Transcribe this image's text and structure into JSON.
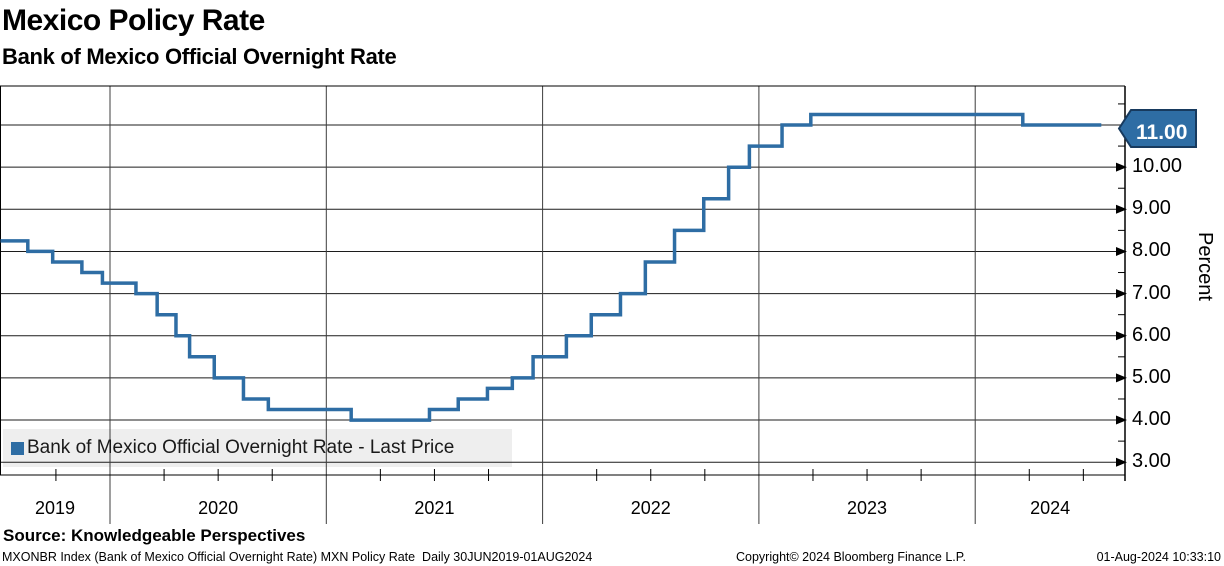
{
  "header": {
    "title": "Mexico Policy Rate",
    "subtitle": "Bank of Mexico Official Overnight Rate"
  },
  "legend": {
    "label": "Bank of Mexico Official Overnight Rate - Last Price",
    "marker_color": "#2e6da4"
  },
  "source_line": "Source: Knowledgeable Perspectives",
  "footer": {
    "left": "MXONBR Index (Bank of Mexico Official Overnight Rate) MXN Policy Rate  Daily 30JUN2019-01AUG2024",
    "copyright": "Copyright© 2024 Bloomberg Finance L.P.",
    "timestamp": "01-Aug-2024 10:33:10"
  },
  "chart_data": {
    "type": "step-line",
    "title": "Mexico Policy Rate",
    "subtitle": "Bank of Mexico Official Overnight Rate",
    "xlabel": "",
    "ylabel": "Percent",
    "x_range": {
      "start": "30JUN2019",
      "end": "01AUG2024"
    },
    "x_year_labels": [
      "2019",
      "2020",
      "2021",
      "2022",
      "2023",
      "2024"
    ],
    "year_boundaries": [
      2020,
      2021,
      2022,
      2023,
      2024
    ],
    "y_ticks": [
      11,
      10,
      9,
      8,
      7,
      6,
      5,
      4,
      3
    ],
    "y_tick_labels": [
      "11.00",
      "10.00",
      "9.00",
      "8.00",
      "7.00",
      "6.00",
      "5.00",
      "4.00",
      "3.00"
    ],
    "y_minor_ticks": [
      11.5,
      10.5,
      9.5,
      8.5,
      7.5,
      6.5,
      5.5,
      4.5,
      3.5
    ],
    "ylim_visible": [
      2.7,
      11.9
    ],
    "grid": true,
    "legend_position": "bottom-left",
    "line_color": "#2e6da4",
    "last_price": {
      "label": "11.00",
      "value": 11.0,
      "bg": "#2e6da4",
      "border": "#173a5e",
      "text_color": "#ffffff"
    },
    "series": [
      {
        "name": "Bank of Mexico Official Overnight Rate - Last Price",
        "color": "#2e6da4",
        "steps": [
          {
            "date": "30JUN2019",
            "t": 2019.49,
            "rate": 8.25
          },
          {
            "date": "15AUG2019",
            "t": 2019.62,
            "rate": 8.0
          },
          {
            "date": "26SEP2019",
            "t": 2019.735,
            "rate": 7.75
          },
          {
            "date": "14NOV2019",
            "t": 2019.87,
            "rate": 7.5
          },
          {
            "date": "19DEC2019",
            "t": 2019.965,
            "rate": 7.25
          },
          {
            "date": "13FEB2020",
            "t": 2020.12,
            "rate": 7.0
          },
          {
            "date": "20MAR2020",
            "t": 2020.218,
            "rate": 6.5
          },
          {
            "date": "21APR2020",
            "t": 2020.305,
            "rate": 6.0
          },
          {
            "date": "14MAY2020",
            "t": 2020.368,
            "rate": 5.5
          },
          {
            "date": "25JUN2020",
            "t": 2020.482,
            "rate": 5.0
          },
          {
            "date": "13AUG2020",
            "t": 2020.617,
            "rate": 4.5
          },
          {
            "date": "24SEP2020",
            "t": 2020.732,
            "rate": 4.25
          },
          {
            "date": "11FEB2021",
            "t": 2021.115,
            "rate": 4.0
          },
          {
            "date": "24JUN2021",
            "t": 2021.477,
            "rate": 4.25
          },
          {
            "date": "12AUG2021",
            "t": 2021.61,
            "rate": 4.5
          },
          {
            "date": "30SEP2021",
            "t": 2021.745,
            "rate": 4.75
          },
          {
            "date": "11NOV2021",
            "t": 2021.86,
            "rate": 5.0
          },
          {
            "date": "16DEC2021",
            "t": 2021.956,
            "rate": 5.5
          },
          {
            "date": "10FEB2022",
            "t": 2022.11,
            "rate": 6.0
          },
          {
            "date": "24MAR2022",
            "t": 2022.225,
            "rate": 6.5
          },
          {
            "date": "12MAY2022",
            "t": 2022.36,
            "rate": 7.0
          },
          {
            "date": "23JUN2022",
            "t": 2022.475,
            "rate": 7.75
          },
          {
            "date": "11AUG2022",
            "t": 2022.61,
            "rate": 8.5
          },
          {
            "date": "29SEP2022",
            "t": 2022.745,
            "rate": 9.25
          },
          {
            "date": "10NOV2022",
            "t": 2022.86,
            "rate": 10.0
          },
          {
            "date": "15DEC2022",
            "t": 2022.956,
            "rate": 10.5
          },
          {
            "date": "09FEB2023",
            "t": 2023.107,
            "rate": 11.0
          },
          {
            "date": "30MAR2023",
            "t": 2023.24,
            "rate": 11.25
          },
          {
            "date": "21MAR2024",
            "t": 2024.22,
            "rate": 11.0
          }
        ],
        "end": {
          "date": "01AUG2024",
          "t": 2024.583,
          "rate": 11.0
        }
      }
    ]
  }
}
